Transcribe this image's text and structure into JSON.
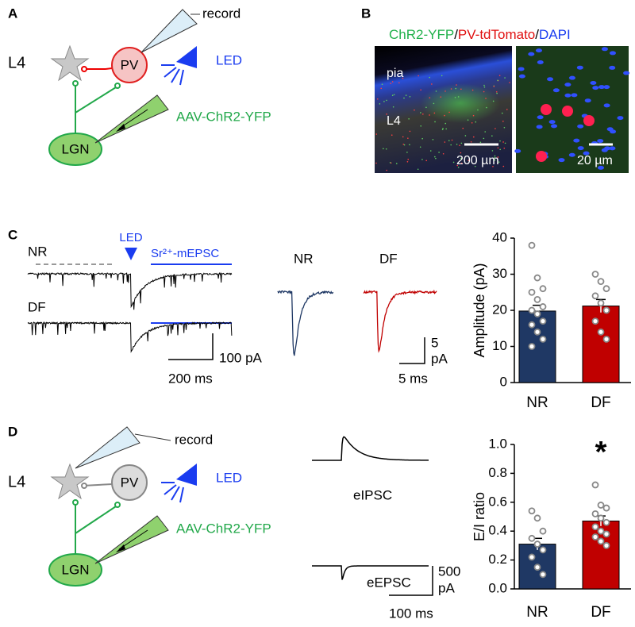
{
  "panel_a": {
    "letter": "A",
    "layer": "L4",
    "cell": "PV",
    "pipette": "record",
    "led": "LED",
    "virus": "AAV-ChR2-YFP",
    "thalamus": "LGN"
  },
  "panel_b": {
    "letter": "B",
    "title_parts": [
      "ChR2-YFP",
      "/",
      "PV-tdTomato",
      "/",
      "DAPI"
    ],
    "pia": "pia",
    "layer": "L4",
    "scale_left": "200 µm",
    "scale_right": "20 µm"
  },
  "panel_c": {
    "letter": "C",
    "trace_top": "NR",
    "trace_bottom": "DF",
    "led": "LED",
    "window": "Sr²⁺-mEPSC",
    "scale_y": "100 pA",
    "scale_x": "200 ms",
    "avg_left": "NR",
    "avg_right": "DF",
    "avg_scale_y": [
      "5",
      "pA"
    ],
    "avg_scale_x": "5 ms"
  },
  "panel_d": {
    "letter": "D",
    "layer": "L4",
    "cell": "PV",
    "pipette": "record",
    "led": "LED",
    "virus": "AAV-ChR2-YFP",
    "thalamus": "LGN",
    "ipsc": "eIPSC",
    "epsc": "eEPSC",
    "scale_y": [
      "500",
      "pA"
    ],
    "scale_x": "100 ms"
  },
  "chart_data": [
    {
      "type": "bar",
      "ylabel": "Amplitude (pA)",
      "categories": [
        "NR",
        "DF"
      ],
      "values": [
        19.8,
        21.2
      ],
      "errors": [
        1.6,
        1.8
      ],
      "colors": [
        "#1f3864",
        "#c00000"
      ],
      "points": [
        [
          38,
          29,
          26,
          25,
          23,
          21,
          20,
          19,
          17,
          16,
          14,
          12,
          10
        ],
        [
          30,
          28,
          26,
          24,
          22,
          20,
          17,
          14,
          12
        ]
      ],
      "ylim": [
        0,
        40
      ],
      "yticks": [
        0,
        10,
        20,
        30,
        40
      ]
    },
    {
      "type": "bar",
      "ylabel": "E/I ratio",
      "categories": [
        "NR",
        "DF"
      ],
      "values": [
        0.31,
        0.47
      ],
      "errors": [
        0.04,
        0.035
      ],
      "colors": [
        "#1f3864",
        "#c00000"
      ],
      "points": [
        [
          0.54,
          0.49,
          0.4,
          0.35,
          0.31,
          0.27,
          0.22,
          0.15,
          0.1
        ],
        [
          0.72,
          0.58,
          0.56,
          0.52,
          0.49,
          0.46,
          0.43,
          0.4,
          0.38,
          0.36,
          0.33,
          0.3
        ]
      ],
      "ylim": [
        0,
        1
      ],
      "yticks": [
        {
          "value": 0,
          "label": "0.0"
        },
        0.2,
        0.4,
        0.6,
        0.8,
        {
          "value": 1,
          "label": "1.0"
        }
      ],
      "annotation": "*"
    }
  ]
}
